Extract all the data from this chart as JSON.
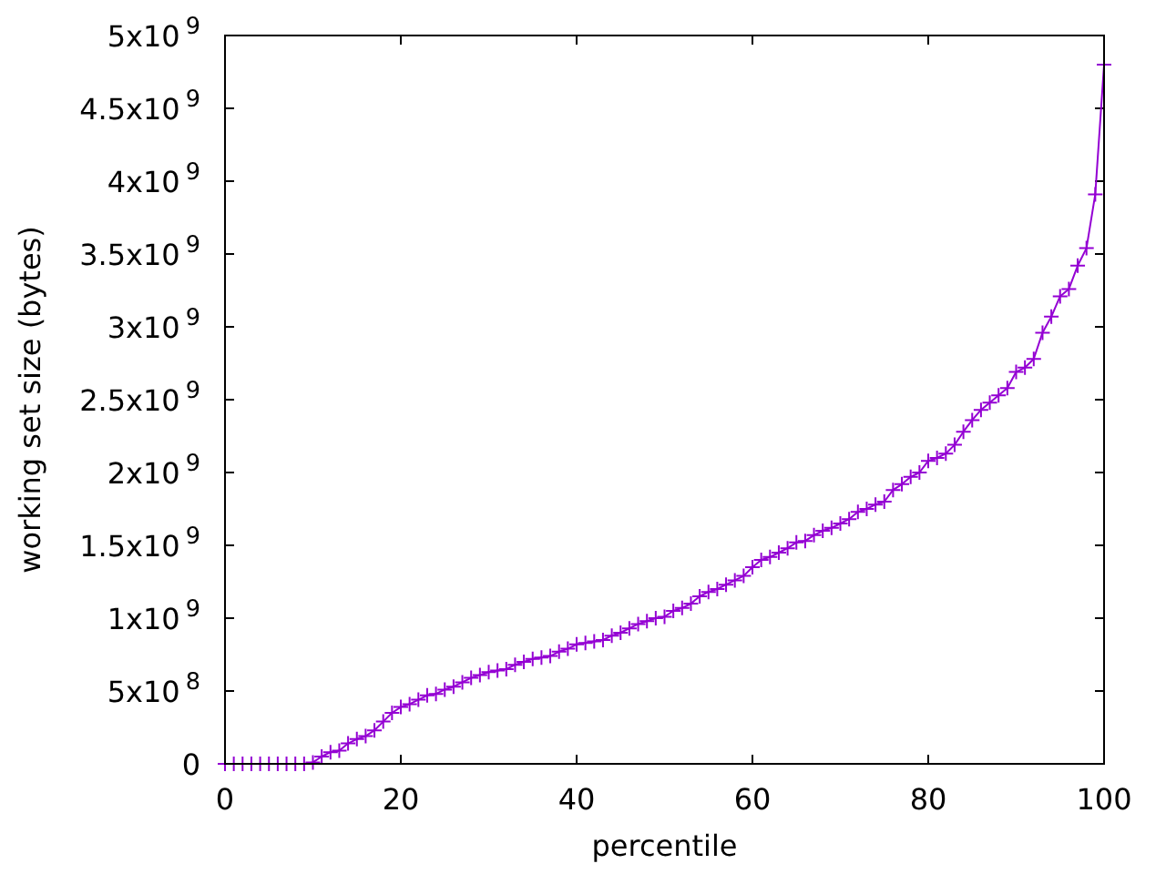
{
  "chart_data": {
    "type": "line",
    "xlabel": "percentile",
    "ylabel": "working set size (bytes)",
    "x": [
      0,
      1,
      2,
      3,
      4,
      5,
      6,
      7,
      8,
      9,
      10,
      11,
      12,
      13,
      14,
      15,
      16,
      17,
      18,
      19,
      20,
      21,
      22,
      23,
      24,
      25,
      26,
      27,
      28,
      29,
      30,
      31,
      32,
      33,
      34,
      35,
      36,
      37,
      38,
      39,
      40,
      41,
      42,
      43,
      44,
      45,
      46,
      47,
      48,
      49,
      50,
      51,
      52,
      53,
      54,
      55,
      56,
      57,
      58,
      59,
      60,
      61,
      62,
      63,
      64,
      65,
      66,
      67,
      68,
      69,
      70,
      71,
      72,
      73,
      74,
      75,
      76,
      77,
      78,
      79,
      80,
      81,
      82,
      83,
      84,
      85,
      86,
      87,
      88,
      89,
      90,
      91,
      92,
      93,
      94,
      95,
      96,
      97,
      98,
      99,
      100
    ],
    "series": [
      {
        "color": "#9400d3",
        "values": [
          0,
          0,
          0,
          0,
          0,
          0,
          0,
          0,
          0,
          0,
          10000000.0,
          50000000.0,
          80000000.0,
          90000000.0,
          140000000.0,
          170000000.0,
          190000000.0,
          230000000.0,
          290000000.0,
          350000000.0,
          390000000.0,
          410000000.0,
          440000000.0,
          470000000.0,
          480000000.0,
          510000000.0,
          530000000.0,
          560000000.0,
          590000000.0,
          610000000.0,
          630000000.0,
          640000000.0,
          650000000.0,
          680000000.0,
          700000000.0,
          720000000.0,
          730000000.0,
          740000000.0,
          770000000.0,
          790000000.0,
          820000000.0,
          830000000.0,
          840000000.0,
          850000000.0,
          880000000.0,
          900000000.0,
          930000000.0,
          960000000.0,
          980000000.0,
          1000000000.0,
          1010000000.0,
          1050000000.0,
          1070000000.0,
          1100000000.0,
          1150000000.0,
          1180000000.0,
          1200000000.0,
          1230000000.0,
          1260000000.0,
          1290000000.0,
          1350000000.0,
          1400000000.0,
          1420000000.0,
          1450000000.0,
          1480000000.0,
          1520000000.0,
          1530000000.0,
          1570000000.0,
          1600000000.0,
          1620000000.0,
          1650000000.0,
          1680000000.0,
          1730000000.0,
          1750000000.0,
          1780000000.0,
          1800000000.0,
          1880000000.0,
          1920000000.0,
          1970000000.0,
          2000000000.0,
          2080000000.0,
          2100000000.0,
          2130000000.0,
          2190000000.0,
          2280000000.0,
          2360000000.0,
          2430000000.0,
          2480000000.0,
          2530000000.0,
          2580000000.0,
          2690000000.0,
          2720000000.0,
          2780000000.0,
          2960000000.0,
          3070000000.0,
          3210000000.0,
          3260000000.0,
          3420000000.0,
          3540000000.0,
          3910000000.0,
          4800000000.0
        ]
      }
    ],
    "xlim": [
      0,
      100
    ],
    "xticks": [
      0,
      20,
      40,
      60,
      80,
      100
    ],
    "ylim": [
      0,
      5000000000.0
    ],
    "yticks": [
      0,
      {
        "value": 500000000.0,
        "label": "5x10$^{8}$"
      },
      {
        "value": 1000000000.0,
        "label": "1x10$^{9}$"
      },
      {
        "value": 1500000000.0,
        "label": "1.5x10$^{9}$"
      },
      {
        "value": 2000000000.0,
        "label": "2x10$^{9}$"
      },
      {
        "value": 2500000000.0,
        "label": "2.5x10$^{9}$"
      },
      {
        "value": 3000000000.0,
        "label": "3x10$^{9}$"
      },
      {
        "value": 3500000000.0,
        "label": "3.5x10$^{9}$"
      },
      {
        "value": 4000000000.0,
        "label": "4x10$^{9}$"
      },
      {
        "value": 4500000000.0,
        "label": "4.5x10$^{9}$"
      },
      {
        "value": 5000000000.0,
        "label": "5x10$^{9}$"
      }
    ],
    "marker": "cross",
    "line_style": "solid"
  }
}
